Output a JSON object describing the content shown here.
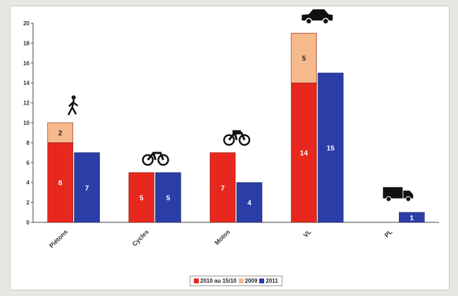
{
  "chart_data": {
    "type": "bar",
    "categories": [
      "Piétons",
      "Cycles",
      "Motos",
      "VL",
      "PL"
    ],
    "ylim": [
      0,
      20
    ],
    "yticks": [
      "0",
      "2",
      "4",
      "6",
      "8",
      "10",
      "12",
      "14",
      "16",
      "18",
      "20"
    ],
    "grid": false,
    "legend_position": "bottom",
    "series": [
      {
        "name": "2010 au 15/10",
        "values": [
          8,
          5,
          7,
          14,
          0
        ],
        "color": "#e8281e",
        "stack": "a"
      },
      {
        "name": "2009",
        "values": [
          2,
          0,
          0,
          5,
          0
        ],
        "color": "#f5b98b",
        "stack": "a"
      },
      {
        "name": "2011",
        "values": [
          7,
          5,
          4,
          15,
          1
        ],
        "color": "#2b3ea8",
        "stack": "b"
      }
    ],
    "category_icons": [
      "pedestrian-icon",
      "bicycle-icon",
      "motorcycle-icon",
      "car-icon",
      "truck-icon"
    ]
  }
}
